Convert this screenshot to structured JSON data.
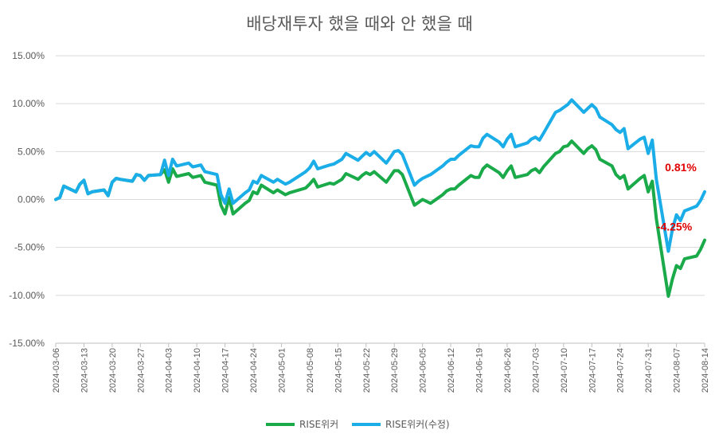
{
  "chart_data": {
    "type": "line",
    "title": "배당재투자 했을 때와 안 했을 때",
    "y_ticks": [
      "15.00%",
      "10.00%",
      "5.00%",
      "0.00%",
      "-5.00%",
      "-10.00%",
      "-15.00%"
    ],
    "ylim": [
      -15,
      15
    ],
    "grid": "horizontal",
    "x_ticks": [
      "2024-03-06",
      "2024-03-13",
      "2024-03-20",
      "2024-03-27",
      "2024-04-03",
      "2024-04-10",
      "2024-04-17",
      "2024-04-24",
      "2024-05-01",
      "2024-05-08",
      "2024-05-15",
      "2024-05-22",
      "2024-05-29",
      "2024-06-05",
      "2024-06-12",
      "2024-06-19",
      "2024-06-26",
      "2024-07-03",
      "2024-07-10",
      "2024-07-17",
      "2024-07-24",
      "2024-07-31",
      "2024-08-07",
      "2024-08-14"
    ],
    "legend_position": "bottom",
    "series": [
      {
        "name": "RISE위커",
        "color": "#1aaa4a",
        "end_label": "-4.25%",
        "points": [
          [
            "2024-03-06",
            0.0
          ],
          [
            "2024-03-07",
            0.2
          ],
          [
            "2024-03-08",
            1.4
          ],
          [
            "2024-03-11",
            0.8
          ],
          [
            "2024-03-12",
            1.6
          ],
          [
            "2024-03-13",
            2.0
          ],
          [
            "2024-03-14",
            0.6
          ],
          [
            "2024-03-15",
            0.8
          ],
          [
            "2024-03-18",
            1.0
          ],
          [
            "2024-03-19",
            0.4
          ],
          [
            "2024-03-20",
            1.8
          ],
          [
            "2024-03-21",
            2.2
          ],
          [
            "2024-03-22",
            2.1
          ],
          [
            "2024-03-25",
            1.9
          ],
          [
            "2024-03-26",
            2.6
          ],
          [
            "2024-03-27",
            2.5
          ],
          [
            "2024-03-28",
            2.0
          ],
          [
            "2024-03-29",
            2.5
          ],
          [
            "2024-04-01",
            2.6
          ],
          [
            "2024-04-02",
            3.1
          ],
          [
            "2024-04-03",
            1.8
          ],
          [
            "2024-04-04",
            3.2
          ],
          [
            "2024-04-05",
            2.4
          ],
          [
            "2024-04-08",
            2.7
          ],
          [
            "2024-04-09",
            2.3
          ],
          [
            "2024-04-11",
            2.5
          ],
          [
            "2024-04-12",
            1.8
          ],
          [
            "2024-04-15",
            1.5
          ],
          [
            "2024-04-16",
            -0.6
          ],
          [
            "2024-04-17",
            -1.5
          ],
          [
            "2024-04-18",
            0.2
          ],
          [
            "2024-04-19",
            -1.5
          ],
          [
            "2024-04-22",
            -0.4
          ],
          [
            "2024-04-23",
            -0.1
          ],
          [
            "2024-04-24",
            0.8
          ],
          [
            "2024-04-25",
            0.6
          ],
          [
            "2024-04-26",
            1.5
          ],
          [
            "2024-04-29",
            0.7
          ],
          [
            "2024-04-30",
            1.0
          ],
          [
            "2024-05-02",
            0.5
          ],
          [
            "2024-05-03",
            0.7
          ],
          [
            "2024-05-07",
            1.2
          ],
          [
            "2024-05-08",
            1.6
          ],
          [
            "2024-05-09",
            2.1
          ],
          [
            "2024-05-10",
            1.3
          ],
          [
            "2024-05-13",
            1.7
          ],
          [
            "2024-05-14",
            1.6
          ],
          [
            "2024-05-16",
            2.1
          ],
          [
            "2024-05-17",
            2.7
          ],
          [
            "2024-05-20",
            2.1
          ],
          [
            "2024-05-21",
            2.5
          ],
          [
            "2024-05-22",
            2.8
          ],
          [
            "2024-05-23",
            2.6
          ],
          [
            "2024-05-24",
            2.9
          ],
          [
            "2024-05-27",
            1.8
          ],
          [
            "2024-05-28",
            2.4
          ],
          [
            "2024-05-29",
            3.0
          ],
          [
            "2024-05-30",
            3.0
          ],
          [
            "2024-05-31",
            2.6
          ],
          [
            "2024-06-03",
            -0.6
          ],
          [
            "2024-06-04",
            -0.3
          ],
          [
            "2024-06-05",
            0.0
          ],
          [
            "2024-06-07",
            -0.4
          ],
          [
            "2024-06-10",
            0.5
          ],
          [
            "2024-06-11",
            0.9
          ],
          [
            "2024-06-12",
            1.1
          ],
          [
            "2024-06-13",
            1.1
          ],
          [
            "2024-06-14",
            1.5
          ],
          [
            "2024-06-17",
            2.5
          ],
          [
            "2024-06-18",
            2.3
          ],
          [
            "2024-06-19",
            2.3
          ],
          [
            "2024-06-20",
            3.2
          ],
          [
            "2024-06-21",
            3.6
          ],
          [
            "2024-06-24",
            2.8
          ],
          [
            "2024-06-25",
            2.3
          ],
          [
            "2024-06-26",
            3.0
          ],
          [
            "2024-06-27",
            3.5
          ],
          [
            "2024-06-28",
            2.3
          ],
          [
            "2024-07-01",
            2.6
          ],
          [
            "2024-07-02",
            3.0
          ],
          [
            "2024-07-03",
            3.2
          ],
          [
            "2024-07-04",
            2.8
          ],
          [
            "2024-07-05",
            3.4
          ],
          [
            "2024-07-08",
            4.8
          ],
          [
            "2024-07-09",
            5.0
          ],
          [
            "2024-07-10",
            5.5
          ],
          [
            "2024-07-11",
            5.6
          ],
          [
            "2024-07-12",
            6.1
          ],
          [
            "2024-07-15",
            4.8
          ],
          [
            "2024-07-16",
            5.3
          ],
          [
            "2024-07-17",
            5.6
          ],
          [
            "2024-07-18",
            5.2
          ],
          [
            "2024-07-19",
            4.2
          ],
          [
            "2024-07-22",
            3.5
          ],
          [
            "2024-07-23",
            2.6
          ],
          [
            "2024-07-24",
            2.2
          ],
          [
            "2024-07-25",
            2.5
          ],
          [
            "2024-07-26",
            1.1
          ],
          [
            "2024-07-29",
            2.2
          ],
          [
            "2024-07-30",
            2.5
          ],
          [
            "2024-07-31",
            0.8
          ],
          [
            "2024-08-01",
            1.9
          ],
          [
            "2024-08-02",
            -2.0
          ],
          [
            "2024-08-05",
            -10.1
          ],
          [
            "2024-08-06",
            -8.3
          ],
          [
            "2024-08-07",
            -6.9
          ],
          [
            "2024-08-08",
            -7.2
          ],
          [
            "2024-08-09",
            -6.2
          ],
          [
            "2024-08-12",
            -5.9
          ],
          [
            "2024-08-13",
            -5.2
          ],
          [
            "2024-08-14",
            -4.25
          ]
        ]
      },
      {
        "name": "RISE위커(수정)",
        "color": "#1aade8",
        "end_label": "0.81%",
        "points": [
          [
            "2024-03-06",
            0.0
          ],
          [
            "2024-03-07",
            0.2
          ],
          [
            "2024-03-08",
            1.4
          ],
          [
            "2024-03-11",
            0.8
          ],
          [
            "2024-03-12",
            1.6
          ],
          [
            "2024-03-13",
            2.0
          ],
          [
            "2024-03-14",
            0.6
          ],
          [
            "2024-03-15",
            0.8
          ],
          [
            "2024-03-18",
            1.0
          ],
          [
            "2024-03-19",
            0.4
          ],
          [
            "2024-03-20",
            1.8
          ],
          [
            "2024-03-21",
            2.2
          ],
          [
            "2024-03-22",
            2.1
          ],
          [
            "2024-03-25",
            1.9
          ],
          [
            "2024-03-26",
            2.6
          ],
          [
            "2024-03-27",
            2.5
          ],
          [
            "2024-03-28",
            2.0
          ],
          [
            "2024-03-29",
            2.5
          ],
          [
            "2024-04-01",
            2.6
          ],
          [
            "2024-04-02",
            4.1
          ],
          [
            "2024-04-03",
            2.5
          ],
          [
            "2024-04-04",
            4.2
          ],
          [
            "2024-04-05",
            3.5
          ],
          [
            "2024-04-08",
            3.8
          ],
          [
            "2024-04-09",
            3.4
          ],
          [
            "2024-04-11",
            3.6
          ],
          [
            "2024-04-12",
            2.9
          ],
          [
            "2024-04-15",
            2.6
          ],
          [
            "2024-04-16",
            0.5
          ],
          [
            "2024-04-17",
            -0.4
          ],
          [
            "2024-04-18",
            1.1
          ],
          [
            "2024-04-19",
            -0.4
          ],
          [
            "2024-04-22",
            0.7
          ],
          [
            "2024-04-23",
            1.0
          ],
          [
            "2024-04-24",
            1.9
          ],
          [
            "2024-04-25",
            1.7
          ],
          [
            "2024-04-26",
            2.5
          ],
          [
            "2024-04-29",
            1.8
          ],
          [
            "2024-04-30",
            2.1
          ],
          [
            "2024-05-02",
            1.6
          ],
          [
            "2024-05-03",
            1.8
          ],
          [
            "2024-05-07",
            2.9
          ],
          [
            "2024-05-08",
            3.3
          ],
          [
            "2024-05-09",
            4.0
          ],
          [
            "2024-05-10",
            3.2
          ],
          [
            "2024-05-13",
            3.6
          ],
          [
            "2024-05-14",
            3.7
          ],
          [
            "2024-05-16",
            4.2
          ],
          [
            "2024-05-17",
            4.8
          ],
          [
            "2024-05-20",
            4.1
          ],
          [
            "2024-05-21",
            4.5
          ],
          [
            "2024-05-22",
            4.9
          ],
          [
            "2024-05-23",
            4.6
          ],
          [
            "2024-05-24",
            5.0
          ],
          [
            "2024-05-27",
            3.8
          ],
          [
            "2024-05-28",
            4.4
          ],
          [
            "2024-05-29",
            5.0
          ],
          [
            "2024-05-30",
            5.1
          ],
          [
            "2024-05-31",
            4.7
          ],
          [
            "2024-06-03",
            1.5
          ],
          [
            "2024-06-04",
            1.9
          ],
          [
            "2024-06-05",
            2.2
          ],
          [
            "2024-06-07",
            2.6
          ],
          [
            "2024-06-10",
            3.5
          ],
          [
            "2024-06-11",
            3.9
          ],
          [
            "2024-06-12",
            4.2
          ],
          [
            "2024-06-13",
            4.2
          ],
          [
            "2024-06-14",
            4.6
          ],
          [
            "2024-06-17",
            5.6
          ],
          [
            "2024-06-18",
            5.5
          ],
          [
            "2024-06-19",
            5.5
          ],
          [
            "2024-06-20",
            6.4
          ],
          [
            "2024-06-21",
            6.8
          ],
          [
            "2024-06-24",
            6.0
          ],
          [
            "2024-06-25",
            5.5
          ],
          [
            "2024-06-26",
            6.3
          ],
          [
            "2024-06-27",
            6.8
          ],
          [
            "2024-06-28",
            5.5
          ],
          [
            "2024-07-01",
            5.9
          ],
          [
            "2024-07-02",
            6.3
          ],
          [
            "2024-07-03",
            6.5
          ],
          [
            "2024-07-04",
            6.2
          ],
          [
            "2024-07-05",
            6.9
          ],
          [
            "2024-07-08",
            9.1
          ],
          [
            "2024-07-09",
            9.3
          ],
          [
            "2024-07-10",
            9.6
          ],
          [
            "2024-07-11",
            9.9
          ],
          [
            "2024-07-12",
            10.4
          ],
          [
            "2024-07-15",
            9.1
          ],
          [
            "2024-07-16",
            9.5
          ],
          [
            "2024-07-17",
            9.9
          ],
          [
            "2024-07-18",
            9.5
          ],
          [
            "2024-07-19",
            8.6
          ],
          [
            "2024-07-22",
            7.8
          ],
          [
            "2024-07-23",
            7.3
          ],
          [
            "2024-07-24",
            7.0
          ],
          [
            "2024-07-25",
            7.4
          ],
          [
            "2024-07-26",
            5.3
          ],
          [
            "2024-07-29",
            6.3
          ],
          [
            "2024-07-30",
            6.5
          ],
          [
            "2024-07-31",
            4.8
          ],
          [
            "2024-08-01",
            6.2
          ],
          [
            "2024-08-02",
            2.1
          ],
          [
            "2024-08-05",
            -5.4
          ],
          [
            "2024-08-06",
            -3.1
          ],
          [
            "2024-08-07",
            -1.6
          ],
          [
            "2024-08-08",
            -2.2
          ],
          [
            "2024-08-09",
            -1.2
          ],
          [
            "2024-08-12",
            -0.7
          ],
          [
            "2024-08-13",
            -0.1
          ],
          [
            "2024-08-14",
            0.81
          ]
        ]
      }
    ]
  }
}
